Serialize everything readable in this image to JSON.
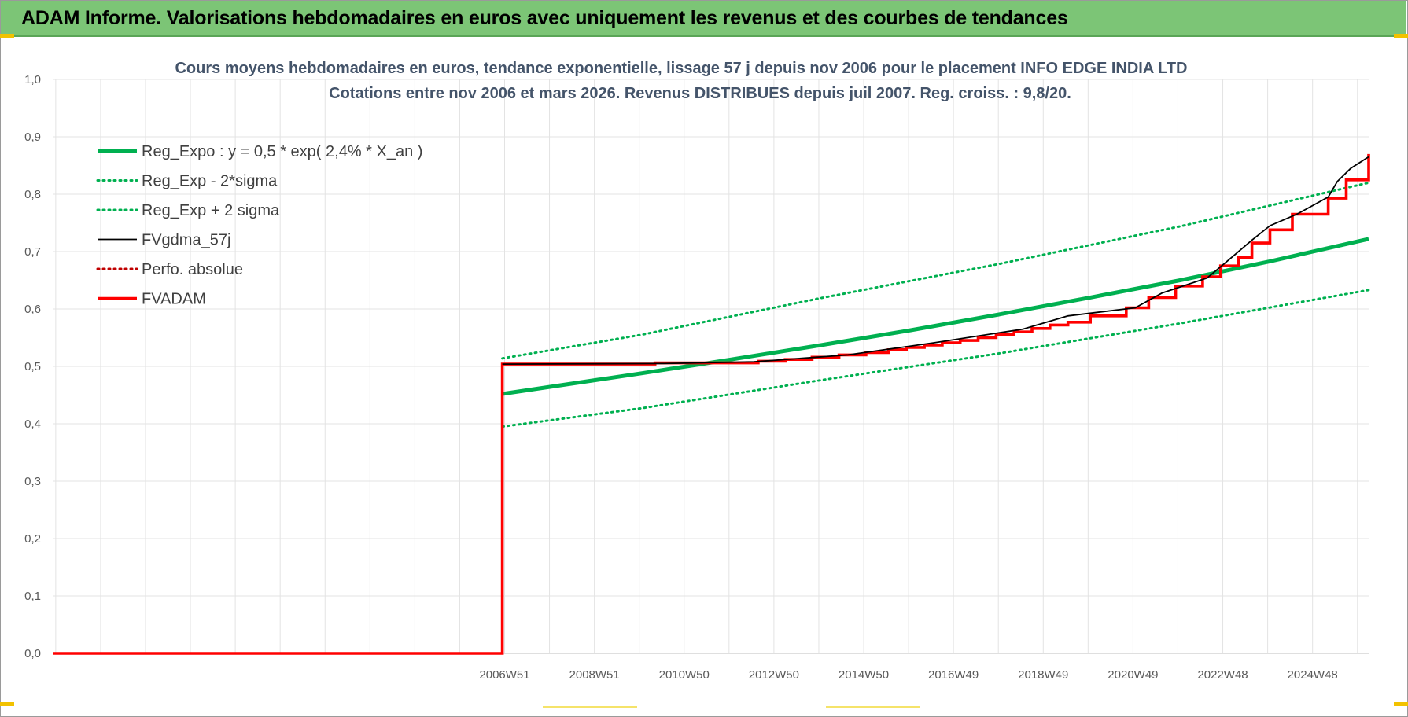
{
  "header": {
    "title": "ADAM Informe. Valorisations hebdomadaires en euros avec uniquement les revenus et des courbes de tendances"
  },
  "chart_data": {
    "type": "line",
    "title_lines": [
      "Cours moyens hebdomadaires en euros, tendance exponentielle, lissage 57 j depuis nov 2006  pour le placement INFO EDGE INDIA LTD",
      "Cotations entre nov 2006 et mars 2026. Revenus DISTRIBUES depuis juil 2007. Reg. croiss. : 9,8/20."
    ],
    "xlabel": "",
    "ylabel": "",
    "ylim": [
      0,
      1
    ],
    "yticks": [
      "0,0",
      "0,1",
      "0,2",
      "0,3",
      "0,4",
      "0,5",
      "0,6",
      "0,7",
      "0,8",
      "0,9",
      "1,0"
    ],
    "xlim": [
      1996.9,
      2026.2
    ],
    "xticks": [
      {
        "x": 2006.95,
        "label": "2006W51"
      },
      {
        "x": 2008.95,
        "label": "2008W51"
      },
      {
        "x": 2010.95,
        "label": "2010W50"
      },
      {
        "x": 2012.95,
        "label": "2012W50"
      },
      {
        "x": 2014.95,
        "label": "2014W50"
      },
      {
        "x": 2016.95,
        "label": "2016W49"
      },
      {
        "x": 2018.95,
        "label": "2018W49"
      },
      {
        "x": 2020.95,
        "label": "2020W49"
      },
      {
        "x": 2022.95,
        "label": "2022W48"
      },
      {
        "x": 2024.95,
        "label": "2024W48"
      }
    ],
    "vertical_gridlines_x": [
      1996.95,
      1997.95,
      1998.95,
      1999.95,
      2000.95,
      2001.95,
      2002.95,
      2003.95,
      2004.95,
      2005.95,
      2006.95,
      2007.95,
      2008.95,
      2009.95,
      2010.95,
      2011.95,
      2012.95,
      2013.95,
      2014.95,
      2015.95,
      2016.95,
      2017.95,
      2018.95,
      2019.95,
      2020.95,
      2021.95,
      2022.95,
      2023.95,
      2024.95,
      2025.95
    ],
    "grid": true,
    "legend_position": "top-left",
    "series": [
      {
        "name": "Reg_Expo : y = 0,5 * exp( 2,4% *  X_an )",
        "color": "#00b050",
        "style": "solid-thick",
        "x": [
          2006.9,
          2010,
          2012,
          2014,
          2016,
          2018,
          2020,
          2022,
          2024,
          2026.2
        ],
        "y": [
          0.452,
          0.488,
          0.512,
          0.537,
          0.563,
          0.591,
          0.62,
          0.65,
          0.683,
          0.722
        ]
      },
      {
        "name": "Reg_Exp - 2*sigma",
        "color": "#00b050",
        "style": "dotted",
        "x": [
          2006.9,
          2010,
          2014,
          2018,
          2022,
          2026.2
        ],
        "y": [
          0.395,
          0.427,
          0.476,
          0.523,
          0.575,
          0.633
        ]
      },
      {
        "name": "Reg_Exp + 2 sigma",
        "color": "#00b050",
        "style": "dotted",
        "x": [
          2006.9,
          2010,
          2014,
          2018,
          2022,
          2026.2
        ],
        "y": [
          0.514,
          0.555,
          0.619,
          0.679,
          0.744,
          0.82
        ]
      },
      {
        "name": "FVgdma_57j",
        "color": "#000000",
        "style": "solid-thin",
        "x": [
          2006.9,
          2010.5,
          2012.5,
          2014.6,
          2016.5,
          2018.5,
          2019.5,
          2021.0,
          2021.6,
          2022.6,
          2023.0,
          2023.6,
          2024.0,
          2024.6,
          2025.3,
          2025.5,
          2025.8,
          2026.2
        ],
        "y": [
          0.504,
          0.505,
          0.508,
          0.52,
          0.541,
          0.565,
          0.588,
          0.602,
          0.628,
          0.654,
          0.68,
          0.72,
          0.745,
          0.765,
          0.795,
          0.822,
          0.845,
          0.865
        ]
      },
      {
        "name": "Perfo. absolue",
        "color": "#c00000",
        "style": "dotted",
        "x": [],
        "y": []
      },
      {
        "name": "FVADAM",
        "color": "#ff0000",
        "style": "step",
        "x": [
          1996.9,
          2006.9,
          2006.9,
          2009.3,
          2010.3,
          2011.8,
          2012.6,
          2013.2,
          2013.8,
          2014.4,
          2015.0,
          2015.5,
          2015.9,
          2016.3,
          2016.7,
          2017.1,
          2017.5,
          2017.9,
          2018.3,
          2018.7,
          2019.1,
          2019.5,
          2020.0,
          2020.8,
          2021.3,
          2021.9,
          2022.5,
          2022.9,
          2023.3,
          2023.6,
          2024.0,
          2024.5,
          2025.3,
          2025.7,
          2026.2
        ],
        "y": [
          0.0,
          0.0,
          0.504,
          0.504,
          0.506,
          0.506,
          0.509,
          0.512,
          0.516,
          0.52,
          0.524,
          0.529,
          0.533,
          0.537,
          0.541,
          0.545,
          0.55,
          0.555,
          0.56,
          0.566,
          0.572,
          0.577,
          0.588,
          0.602,
          0.62,
          0.64,
          0.656,
          0.675,
          0.69,
          0.715,
          0.738,
          0.765,
          0.793,
          0.825,
          0.87
        ]
      }
    ]
  }
}
